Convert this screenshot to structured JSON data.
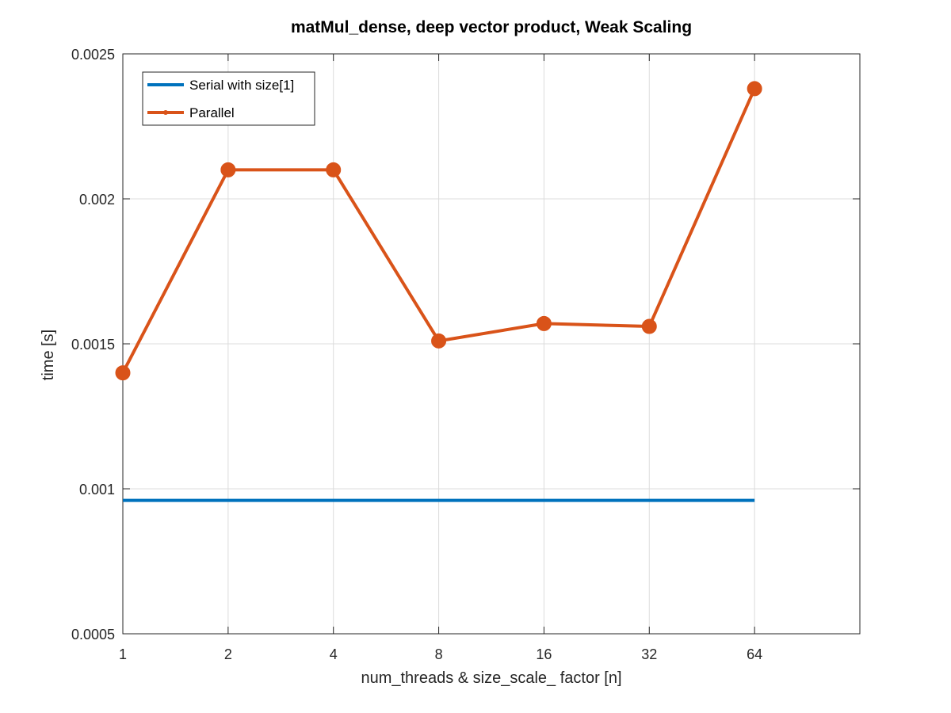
{
  "chart_data": {
    "type": "line",
    "title": "matMul_dense, deep vector product, Weak Scaling",
    "xlabel": "num_threads & size_scale_ factor [n]",
    "ylabel": "time [s]",
    "x_scale": "log2",
    "x_tick_labels": [
      "1",
      "2",
      "4",
      "8",
      "16",
      "32",
      "64"
    ],
    "x_ticks": [
      1,
      2,
      4,
      8,
      16,
      32,
      64
    ],
    "xlim": [
      1,
      128
    ],
    "y_tick_labels": [
      "0.0005",
      "0.001",
      "0.0015",
      "0.002",
      "0.0025"
    ],
    "y_ticks": [
      0.0005,
      0.001,
      0.0015,
      0.002,
      0.0025
    ],
    "ylim": [
      0.0005,
      0.0025
    ],
    "grid": true,
    "legend_position": "top-left",
    "series": [
      {
        "name": "Serial with size[1]",
        "color": "#0072BD",
        "marker": "none",
        "x": [
          1,
          64
        ],
        "y": [
          0.00096,
          0.00096
        ]
      },
      {
        "name": "Parallel",
        "color": "#D95319",
        "marker": "circle",
        "x": [
          1,
          2,
          4,
          8,
          16,
          32,
          64
        ],
        "y": [
          0.0014,
          0.0021,
          0.0021,
          0.00151,
          0.00157,
          0.00156,
          0.00238
        ]
      }
    ]
  }
}
